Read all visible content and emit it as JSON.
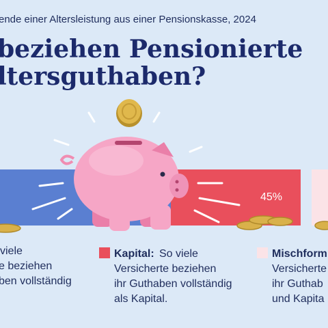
{
  "header": {
    "subtitle": "ende einer Altersleistung aus einer Pensionskasse, 2024",
    "title_lines": [
      "beziehen Pensionierte",
      "ltersguthaben?"
    ]
  },
  "bar": {
    "value_label": "45%"
  },
  "legend": [
    {
      "lines": [
        "viele",
        "e beziehen",
        "ben vollständig"
      ]
    },
    {
      "term": "Kapital:",
      "lines": [
        "So viele",
        "Versicherte beziehen",
        "ihr Guthaben vollständig",
        "als Kapital."
      ]
    },
    {
      "term": "Mischform",
      "lines": [
        "Versicherte",
        "ihr Guthab",
        "und Kapita"
      ]
    }
  ]
}
